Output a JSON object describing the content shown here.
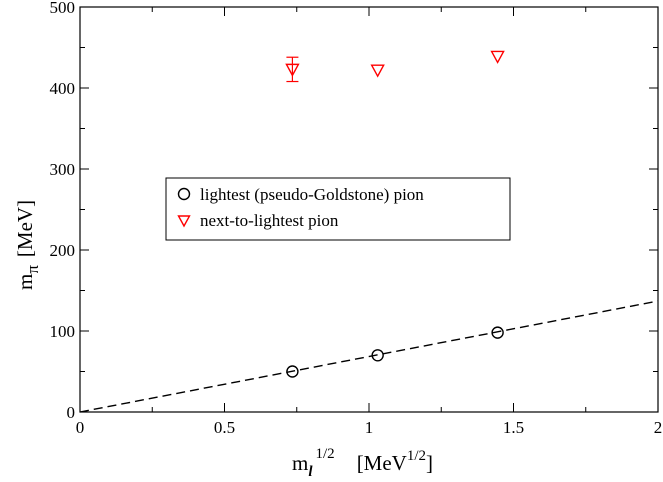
{
  "chart_data": {
    "type": "scatter",
    "xlabel": {
      "base": "m",
      "sub": "l",
      "sup": "1/2",
      "unit": "[MeV",
      "unit_sup": "1/2",
      "unit_close": "]"
    },
    "ylabel": {
      "base": "m",
      "sub": "π",
      "unit": "[MeV]"
    },
    "xlim": [
      0,
      2
    ],
    "ylim": [
      0,
      500
    ],
    "xticks": [
      0,
      0.5,
      1,
      1.5,
      2
    ],
    "yticks": [
      0,
      100,
      200,
      300,
      400,
      500
    ],
    "xtick_labels": [
      "0",
      "0.5",
      "1",
      "1.5",
      "2"
    ],
    "ytick_labels": [
      "0",
      "100",
      "200",
      "300",
      "400",
      "500"
    ],
    "grid": false,
    "legend_position": "center-left",
    "series": [
      {
        "name": "lightest (pseudo-Goldstone) pion",
        "marker": "circle",
        "color": "#000000",
        "points": [
          {
            "x": 0.735,
            "y": 50,
            "err": 2
          },
          {
            "x": 1.03,
            "y": 70,
            "err": 2
          },
          {
            "x": 1.445,
            "y": 98,
            "err": 2
          }
        ]
      },
      {
        "name": "next-to-lightest pion",
        "marker": "triangle-down",
        "color": "#ff0000",
        "points": [
          {
            "x": 0.735,
            "y": 423,
            "err": 15
          },
          {
            "x": 1.03,
            "y": 422,
            "err": 4
          },
          {
            "x": 1.445,
            "y": 439,
            "err": 4
          }
        ]
      }
    ],
    "fit_line": {
      "style": "dashed",
      "color": "#000000",
      "x": [
        0,
        2
      ],
      "y": [
        0,
        137
      ]
    }
  }
}
